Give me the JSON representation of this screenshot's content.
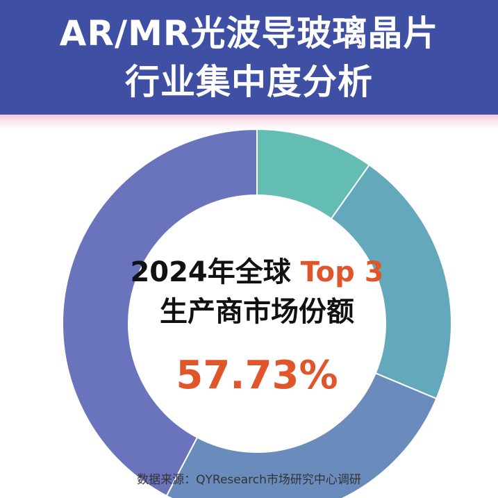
{
  "header": {
    "title_line1": "AR/MR光波导玻璃晶片",
    "title_line2": "行业集中度分析"
  },
  "center": {
    "line1_prefix": "2024年全球 ",
    "line1_highlight": "Top 3",
    "line2": "生产商市场份额",
    "value": "57.73%"
  },
  "source": "数据来源：QYResearch市场研究中心调研",
  "colors": {
    "header_bg": "#3f4fa3",
    "accent": "#e0562a",
    "segment_1": "#63bdb3",
    "segment_2": "#64a9bb",
    "segment_3": "#6a8cbd",
    "segment_4": "#6a74bd"
  },
  "chart_data": {
    "type": "pie",
    "donut": true,
    "series": [
      {
        "values": [
          9.8,
          21.5,
          26.4,
          42.3
        ]
      }
    ],
    "title": "",
    "xlabel": "",
    "ylabel": ""
  }
}
